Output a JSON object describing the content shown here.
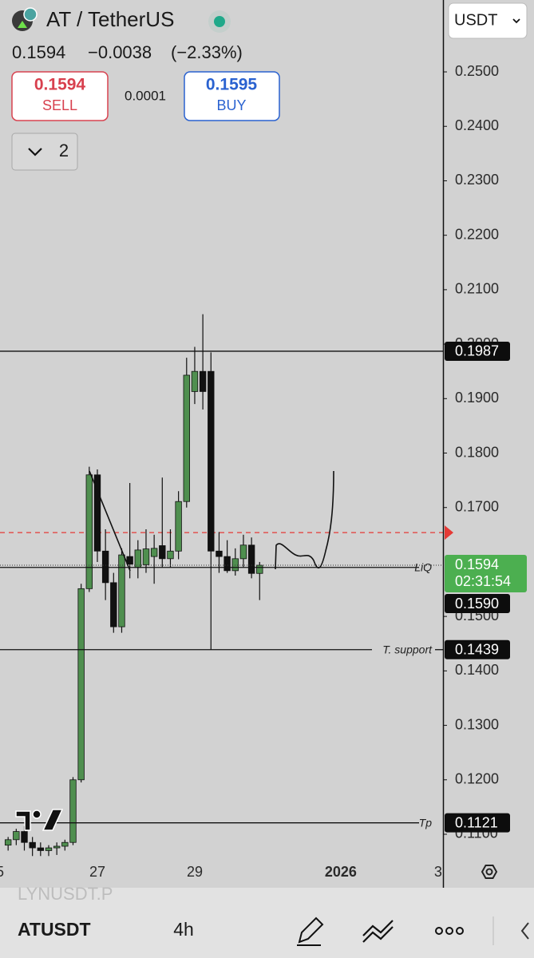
{
  "header": {
    "symbol_title": "AT / TetherUS",
    "last": "0.1594",
    "change": "−0.0038",
    "change_pct": "(−2.33%)",
    "sell_price": "0.1594",
    "sell": "SELL",
    "spread": "0.0001",
    "buy_price": "0.1595",
    "buy": "BUY",
    "indicators": "2",
    "currency": "USDT"
  },
  "footer": {
    "watermark": "LYNUSDT.P",
    "symbol": "ATUSDT",
    "interval": "4h"
  },
  "chart_data": {
    "type": "candlestick",
    "x": [
      25.1667,
      25.3333,
      25.5,
      25.6667,
      25.8333,
      26,
      26.1667,
      26.3333,
      26.5,
      26.6667,
      26.8333,
      27,
      27.1667,
      27.3333,
      27.5,
      27.6667,
      27.8333,
      28,
      28.1667,
      28.3333,
      28.5,
      28.6667,
      28.8333,
      29,
      29.1667,
      29.3333,
      29.5,
      29.6667,
      29.8333,
      30,
      30.1667,
      30.3333
    ],
    "open": [
      0.108,
      0.109,
      0.1105,
      0.1085,
      0.1075,
      0.107,
      0.1075,
      0.1078,
      0.1085,
      0.12,
      0.1551,
      0.176,
      0.162,
      0.1562,
      0.1481,
      0.161,
      0.159,
      0.1595,
      0.161,
      0.163,
      0.1606,
      0.162,
      0.1711,
      0.1913,
      0.195,
      0.195,
      0.162,
      0.161,
      0.1584,
      0.1606,
      0.1631,
      0.1579
    ],
    "high": [
      0.1095,
      0.111,
      0.1115,
      0.1095,
      0.1085,
      0.108,
      0.1085,
      0.109,
      0.1205,
      0.156,
      0.1775,
      0.177,
      0.166,
      0.158,
      0.1625,
      0.1745,
      0.164,
      0.166,
      0.165,
      0.1755,
      0.166,
      0.173,
      0.1975,
      0.1995,
      0.2055,
      0.1985,
      0.1655,
      0.164,
      0.1625,
      0.165,
      0.1645,
      0.16
    ],
    "low": [
      0.107,
      0.108,
      0.107,
      0.106,
      0.106,
      0.106,
      0.1062,
      0.107,
      0.108,
      0.1195,
      0.1545,
      0.16,
      0.153,
      0.147,
      0.147,
      0.157,
      0.157,
      0.158,
      0.156,
      0.159,
      0.159,
      0.1605,
      0.17,
      0.189,
      0.188,
      0.1439,
      0.158,
      0.158,
      0.1575,
      0.159,
      0.157,
      0.153
    ],
    "close": [
      0.109,
      0.1105,
      0.1085,
      0.1075,
      0.107,
      0.1075,
      0.1078,
      0.1085,
      0.12,
      0.1551,
      0.176,
      0.162,
      0.1562,
      0.1481,
      0.1613,
      0.1596,
      0.1622,
      0.1624,
      0.1625,
      0.1606,
      0.162,
      0.1711,
      0.1943,
      0.195,
      0.1913,
      0.162,
      0.161,
      0.1584,
      0.1606,
      0.1631,
      0.1579,
      0.1594
    ],
    "up_color": "#4f8f4f",
    "down_color": "#111111",
    "xlim": [
      25,
      34.1
    ],
    "xticks": [
      {
        "value": 25,
        "label": "5"
      },
      27,
      29,
      {
        "value": 32,
        "label": "2026"
      },
      {
        "value": 34,
        "label": "3"
      }
    ],
    "ylim": [
      0.1056,
      0.2632
    ],
    "yticks": [
      {
        "value": 0.25,
        "label": "0.2500"
      },
      {
        "value": 0.24,
        "label": "0.2400"
      },
      {
        "value": 0.23,
        "label": "0.2300"
      },
      {
        "value": 0.22,
        "label": "0.2200"
      },
      {
        "value": 0.21,
        "label": "0.2100"
      },
      {
        "value": 0.2,
        "label": "0.2000"
      },
      {
        "value": 0.19,
        "label": "0.1900"
      },
      {
        "value": 0.18,
        "label": "0.1800"
      },
      {
        "value": 0.17,
        "label": "0.1700"
      },
      {
        "value": 0.15,
        "label": "0.1500"
      },
      {
        "value": 0.14,
        "label": "0.1400"
      },
      {
        "value": 0.13,
        "label": "0.1300"
      },
      {
        "value": 0.12,
        "label": "0.1200"
      },
      {
        "value": 0.11,
        "label": "0.1100"
      }
    ],
    "price_lines": [
      {
        "value": 0.1987
      },
      {
        "value": 0.159,
        "label": "0.1590",
        "name": "LiQ"
      },
      {
        "value": 0.1439,
        "name": "T. support"
      },
      {
        "value": 0.1121,
        "name": "Tp"
      }
    ],
    "last_price": {
      "value": 0.1594,
      "countdown": "02:31:54",
      "color": "#4caf50"
    },
    "alert_line": {
      "value": 0.1654,
      "color": "#e53935"
    }
  }
}
